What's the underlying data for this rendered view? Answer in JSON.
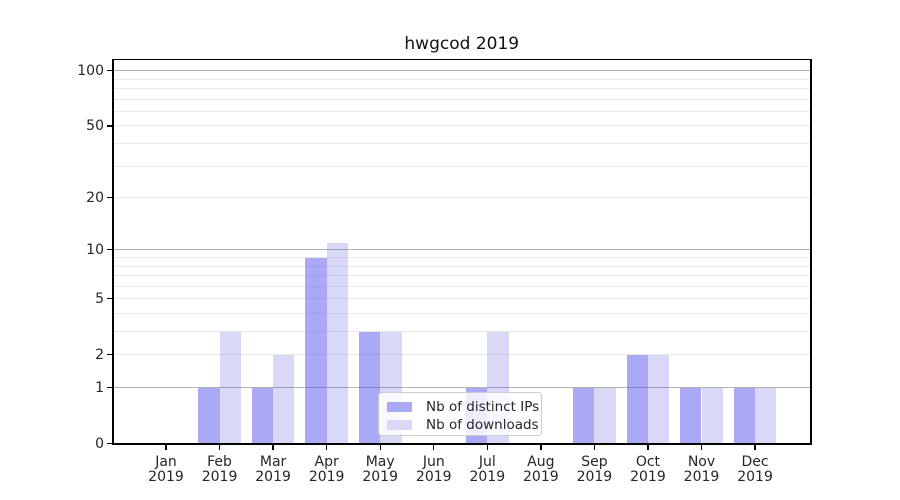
{
  "figure": {
    "background_color": "#ffffff",
    "axes_box_color": "#000000"
  },
  "chart_data": {
    "type": "bar",
    "title": "hwgcod 2019",
    "xlabel": "",
    "ylabel": "",
    "categories": [
      {
        "month": "Jan",
        "year": "2019"
      },
      {
        "month": "Feb",
        "year": "2019"
      },
      {
        "month": "Mar",
        "year": "2019"
      },
      {
        "month": "Apr",
        "year": "2019"
      },
      {
        "month": "May",
        "year": "2019"
      },
      {
        "month": "Jun",
        "year": "2019"
      },
      {
        "month": "Jul",
        "year": "2019"
      },
      {
        "month": "Aug",
        "year": "2019"
      },
      {
        "month": "Sep",
        "year": "2019"
      },
      {
        "month": "Oct",
        "year": "2019"
      },
      {
        "month": "Nov",
        "year": "2019"
      },
      {
        "month": "Dec",
        "year": "2019"
      }
    ],
    "series": [
      {
        "name": "Nb of distinct IPs",
        "key": "distinct-ips",
        "color": "#a9a9f5",
        "fill_rgba": "rgba(64,64,233,0.45)",
        "values": [
          0,
          1,
          1,
          9,
          3,
          0,
          1,
          0,
          1,
          2,
          1,
          1
        ]
      },
      {
        "name": "Nb of downloads",
        "key": "downloads",
        "color": "#d9d9f7",
        "fill_rgba": "rgba(65,65,215,0.20)",
        "values": [
          0,
          3,
          2,
          11,
          3,
          0,
          3,
          0,
          1,
          2,
          1,
          1
        ]
      }
    ],
    "y_axis": {
      "scale": "log1p",
      "ticks": [
        0,
        1,
        2,
        5,
        10,
        20,
        50,
        100
      ],
      "range_top": 115
    },
    "grid": {
      "major_values": [
        1,
        10,
        100
      ],
      "minor_values": [
        2,
        3,
        4,
        5,
        6,
        7,
        8,
        9,
        20,
        30,
        40,
        50,
        60,
        70,
        80,
        90
      ],
      "major_color": "#b4b4b4",
      "minor_color": "#e9e9e9"
    },
    "legend_position": "lower center",
    "grid_on": true
  }
}
